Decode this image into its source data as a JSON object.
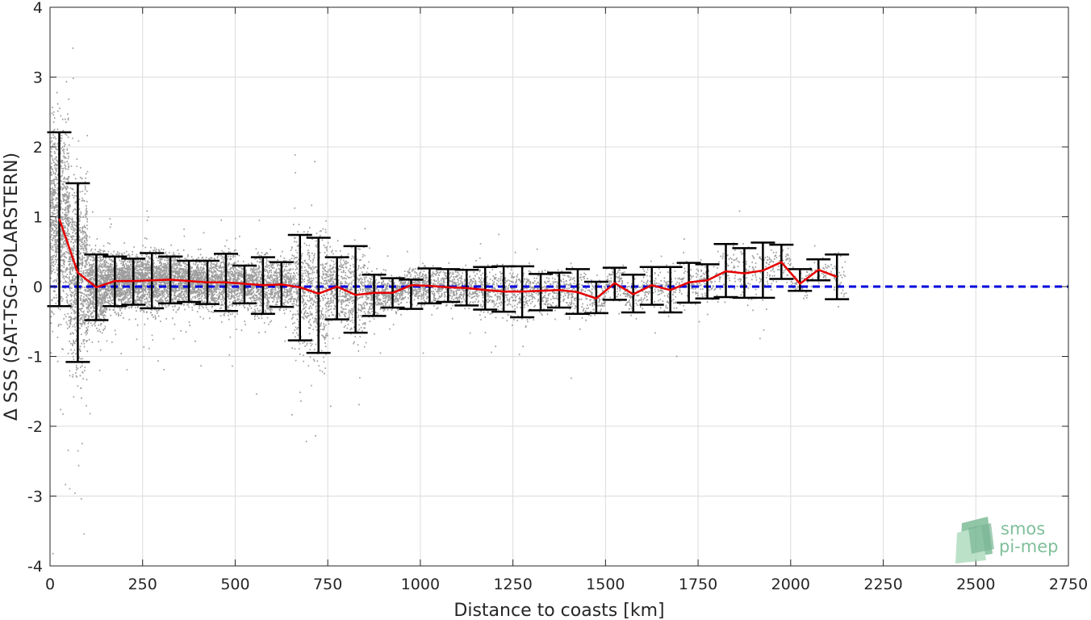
{
  "chart_data": {
    "type": "scatter",
    "xlabel": "Distance to coasts [km]",
    "ylabel": "Δ SSS (SAT-TSG-POLARSTERN)",
    "xlim": [
      0,
      2750
    ],
    "ylim": [
      -4,
      4
    ],
    "x_ticks": [
      "0",
      "250",
      "500",
      "750",
      "1000",
      "1250",
      "1500",
      "1750",
      "2000",
      "2250",
      "2500",
      "2750"
    ],
    "x_tick_values": [
      0,
      250,
      500,
      750,
      1000,
      1250,
      1500,
      1750,
      2000,
      2250,
      2500,
      2750
    ],
    "y_ticks": [
      "4",
      "3",
      "2",
      "1",
      "0",
      "-1",
      "-2",
      "-3",
      "-4"
    ],
    "y_tick_values": [
      4,
      3,
      2,
      1,
      0,
      -1,
      -2,
      -3,
      -4
    ],
    "grid": true,
    "reference_line": {
      "y": 0,
      "style": "dashed",
      "color": "#0000dd"
    },
    "scatter_color": "#8c8c8c",
    "mean_line_color": "#e60000",
    "errorbar_color": "#000000",
    "series": [
      {
        "type": "line-with-errorbars",
        "x": [
          25,
          75,
          125,
          175,
          225,
          275,
          325,
          375,
          425,
          475,
          525,
          575,
          625,
          675,
          725,
          775,
          825,
          875,
          925,
          975,
          1025,
          1075,
          1125,
          1175,
          1225,
          1275,
          1325,
          1375,
          1425,
          1475,
          1525,
          1575,
          1625,
          1675,
          1725,
          1775,
          1825,
          1875,
          1925,
          1975,
          2025,
          2075,
          2125
        ],
        "mean": [
          0.97,
          0.2,
          -0.01,
          0.08,
          0.08,
          0.09,
          0.1,
          0.08,
          0.06,
          0.06,
          0.04,
          0.02,
          0.03,
          -0.01,
          -0.1,
          0.0,
          -0.12,
          -0.09,
          -0.09,
          0.02,
          0.01,
          -0.01,
          -0.02,
          -0.05,
          -0.07,
          -0.07,
          -0.06,
          -0.05,
          -0.08,
          -0.17,
          0.05,
          -0.11,
          0.02,
          -0.05,
          0.06,
          0.09,
          0.22,
          0.19,
          0.23,
          0.35,
          0.04,
          0.24,
          0.14
        ],
        "upper": [
          2.21,
          1.48,
          0.46,
          0.43,
          0.4,
          0.48,
          0.43,
          0.37,
          0.37,
          0.47,
          0.3,
          0.42,
          0.35,
          0.74,
          0.7,
          0.42,
          0.58,
          0.17,
          0.12,
          0.1,
          0.26,
          0.25,
          0.24,
          0.28,
          0.29,
          0.29,
          0.18,
          0.2,
          0.25,
          0.07,
          0.27,
          0.17,
          0.28,
          0.28,
          0.34,
          0.32,
          0.61,
          0.55,
          0.63,
          0.6,
          0.25,
          0.39,
          0.46
        ],
        "lower": [
          -0.28,
          -1.08,
          -0.48,
          -0.28,
          -0.26,
          -0.31,
          -0.24,
          -0.22,
          -0.25,
          -0.35,
          -0.24,
          -0.39,
          -0.29,
          -0.77,
          -0.95,
          -0.47,
          -0.66,
          -0.42,
          -0.3,
          -0.32,
          -0.24,
          -0.22,
          -0.27,
          -0.33,
          -0.36,
          -0.44,
          -0.34,
          -0.3,
          -0.39,
          -0.38,
          -0.19,
          -0.37,
          -0.26,
          -0.37,
          -0.23,
          -0.17,
          -0.15,
          -0.16,
          -0.16,
          0.11,
          -0.06,
          0.09,
          -0.18
        ]
      }
    ]
  },
  "logo": {
    "line1": "smos",
    "line2": "pi-mep"
  }
}
